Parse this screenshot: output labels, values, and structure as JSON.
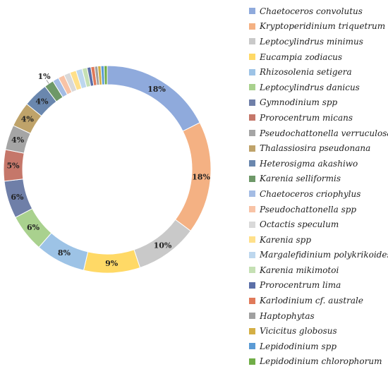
{
  "chart_data": {
    "type": "pie",
    "variant": "donut",
    "title": "",
    "legend_position": "right",
    "series": [
      {
        "name": "Chaetoceros convolutus",
        "value": 18,
        "color": "#8FAADC"
      },
      {
        "name": "Kryptoperidinium triquetrum",
        "value": 18,
        "color": "#F4B183"
      },
      {
        "name": "Leptocylindrus minimus",
        "value": 10,
        "color": "#C9C9C9"
      },
      {
        "name": "Eucampia zodiacus",
        "value": 9,
        "color": "#FFD966"
      },
      {
        "name": "Rhizosolenia setigera",
        "value": 8,
        "color": "#9DC3E6"
      },
      {
        "name": "Leptocylindrus danicus",
        "value": 6,
        "color": "#A9D18E"
      },
      {
        "name": "Gymnodinium spp",
        "value": 6,
        "color": "#6F7FA8"
      },
      {
        "name": "Prorocentrum micans",
        "value": 5,
        "color": "#C5776A"
      },
      {
        "name": "Pseudochattonella verruculosa",
        "value": 4,
        "color": "#A5A5A5"
      },
      {
        "name": "Thalassiosira pseudonana",
        "value": 4,
        "color": "#BFA36A"
      },
      {
        "name": "Heterosigma akashiwo",
        "value": 4,
        "color": "#6A87AE"
      },
      {
        "name": "Karenia selliformis",
        "value": 1.5,
        "color": "#6E9868"
      },
      {
        "name": "Chaetoceros criophylus",
        "value": 1,
        "color": "#A4BCE4"
      },
      {
        "name": "Pseudochattonella spp",
        "value": 1,
        "color": "#F8C3A6"
      },
      {
        "name": "Octactis speculum",
        "value": 1,
        "color": "#D9D9D9"
      },
      {
        "name": "Karenia spp",
        "value": 1,
        "color": "#FFE08A"
      },
      {
        "name": "Margalefidinium polykrikoides",
        "value": 1,
        "color": "#BDD7EE"
      },
      {
        "name": "Karenia mikimotoi",
        "value": 0.8,
        "color": "#C5E0B4"
      },
      {
        "name": "Prorocentrum lima",
        "value": 0.6,
        "color": "#5B6FA8"
      },
      {
        "name": "Karlodinium cf. australe",
        "value": 0.6,
        "color": "#E07A5A"
      },
      {
        "name": "Haptophytas",
        "value": 0.5,
        "color": "#A0A0A0"
      },
      {
        "name": "Vicicitus globosus",
        "value": 0.5,
        "color": "#D4AF45"
      },
      {
        "name": "Lepidodinium spp",
        "value": 0.5,
        "color": "#5B9BD5"
      },
      {
        "name": "Lepidodinium chlorophorum",
        "value": 0.5,
        "color": "#70AD47"
      }
    ],
    "labels": [
      {
        "index": 0,
        "text": "18%"
      },
      {
        "index": 1,
        "text": "18%"
      },
      {
        "index": 2,
        "text": "10%"
      },
      {
        "index": 3,
        "text": "9%"
      },
      {
        "index": 4,
        "text": "8%"
      },
      {
        "index": 5,
        "text": "6%"
      },
      {
        "index": 6,
        "text": "6%"
      },
      {
        "index": 7,
        "text": "5%"
      },
      {
        "index": 8,
        "text": "4%"
      },
      {
        "index": 9,
        "text": "4%"
      },
      {
        "index": 10,
        "text": "4%"
      },
      {
        "index": 11,
        "text": "1%"
      }
    ]
  }
}
